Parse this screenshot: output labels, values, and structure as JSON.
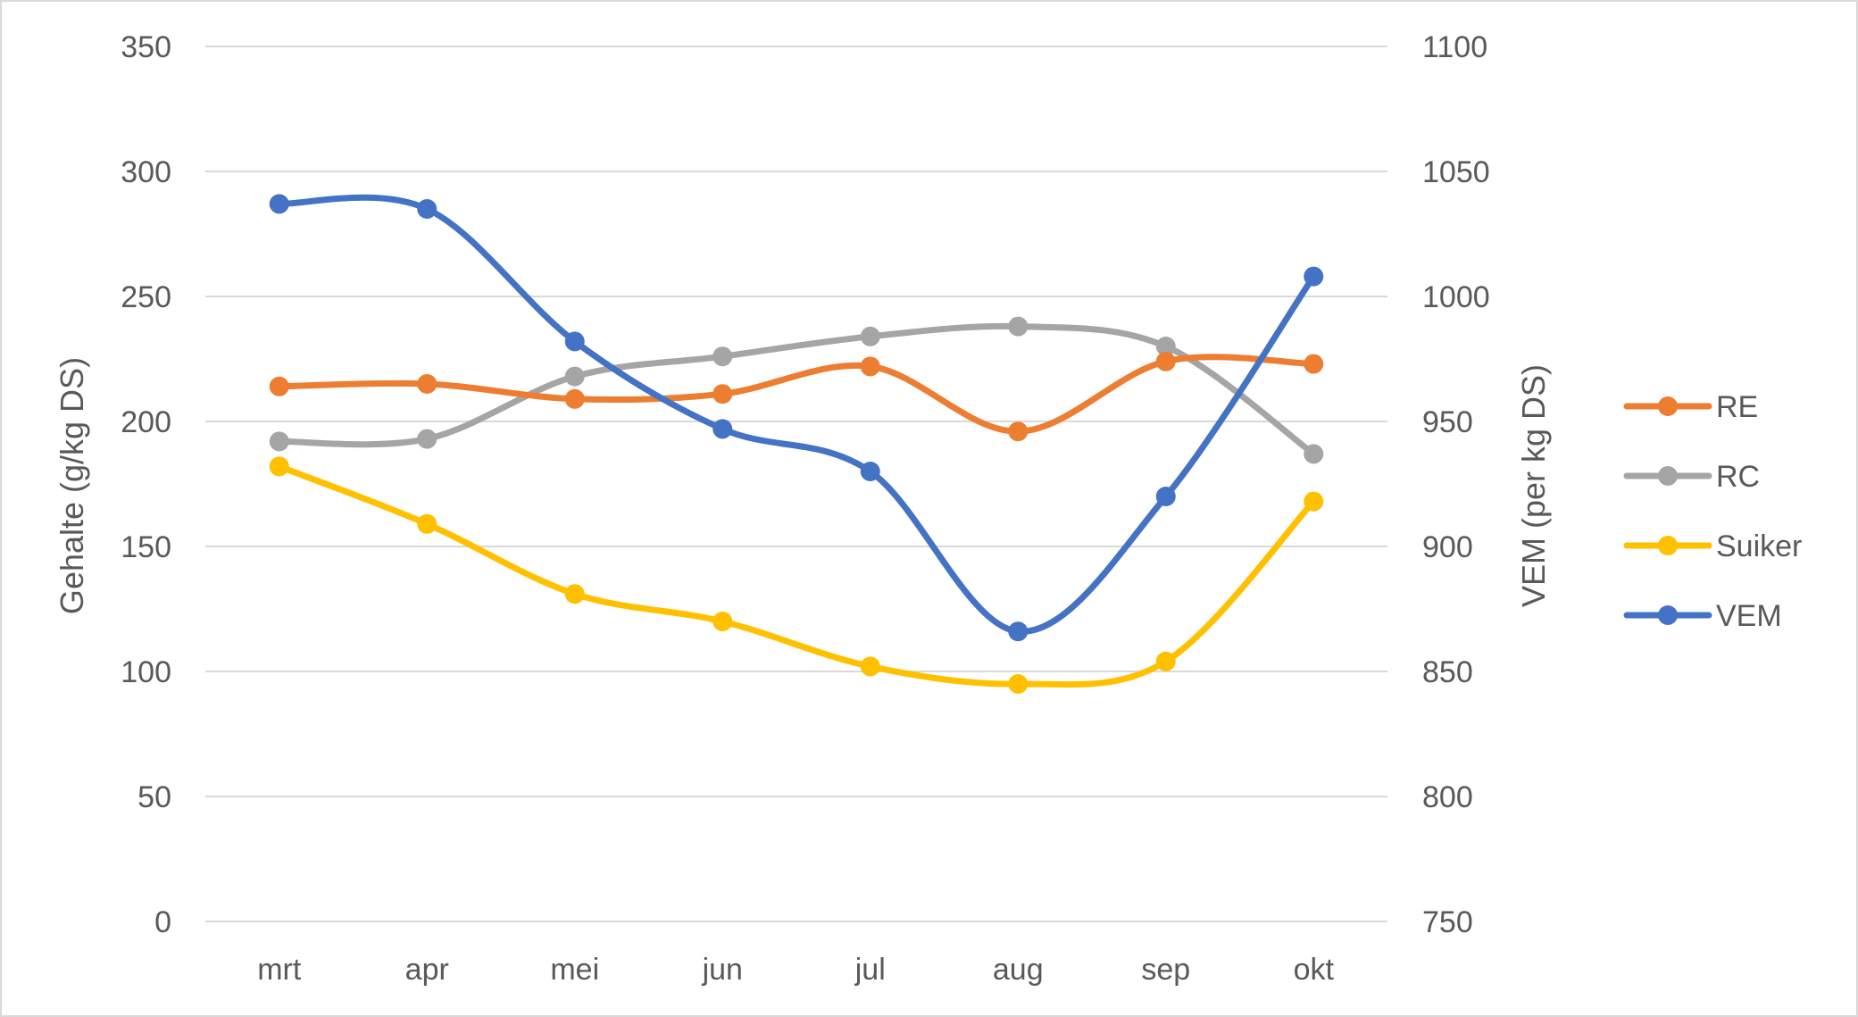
{
  "chart_data": {
    "type": "line",
    "smooth": true,
    "categories": [
      "mrt",
      "apr",
      "mei",
      "jun",
      "jul",
      "aug",
      "sep",
      "okt"
    ],
    "y_left": {
      "label": "Gehalte (g/kg DS)",
      "ylim": [
        0,
        350
      ],
      "ticks": [
        0,
        50,
        100,
        150,
        200,
        250,
        300,
        350
      ]
    },
    "y_right": {
      "label": "VEM (per kg DS)",
      "ylim": [
        750,
        1100
      ],
      "ticks": [
        750,
        800,
        850,
        900,
        950,
        1000,
        1050,
        1100
      ]
    },
    "grid": true,
    "legend_position": "right",
    "series": [
      {
        "name": "RE",
        "axis": "left",
        "color": "#ED7D31",
        "values": [
          214,
          215,
          209,
          211,
          222,
          196,
          224,
          223
        ]
      },
      {
        "name": "RC",
        "axis": "left",
        "color": "#A5A5A5",
        "values": [
          192,
          193,
          218,
          226,
          234,
          238,
          230,
          187
        ]
      },
      {
        "name": "Suiker",
        "axis": "left",
        "color": "#FFC000",
        "values": [
          182,
          159,
          131,
          120,
          102,
          95,
          104,
          168
        ]
      },
      {
        "name": "VEM",
        "axis": "right",
        "color": "#4472C4",
        "values": [
          1037,
          1035,
          982,
          947,
          930,
          866,
          920,
          1008
        ]
      }
    ]
  }
}
